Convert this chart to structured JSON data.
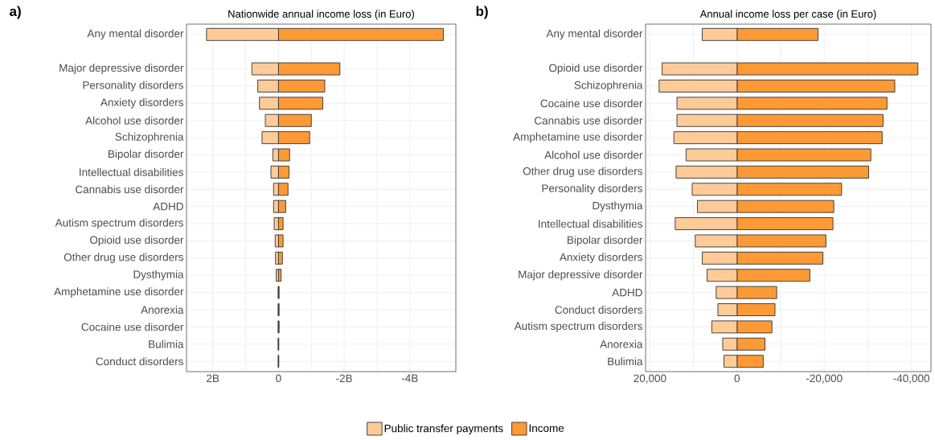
{
  "chart_data": [
    {
      "type": "bar",
      "orientation": "horizontal",
      "title": "Nationwide annual income loss (in Euro)",
      "annotations": [
        "a)"
      ],
      "categories": [
        "Any mental disorder",
        null,
        "Major depressive disorder",
        "Personality disorders",
        "Anxiety disorders",
        "Alcohol use disorder",
        "Schizophrenia",
        "Bipolar disorder",
        "Intellectual disabilities",
        "Cannabis use disorder",
        "ADHD",
        "Autism spectrum disorders",
        "Opioid use disorder",
        "Other drug use disorders",
        "Dysthymia",
        "Amphetamine use disorder",
        "Anorexia",
        "Cocaine use disorder",
        "Bulimia",
        "Conduct disorders"
      ],
      "series": [
        {
          "color": "#fdcb98",
          "values": [
            2.19,
            null,
            0.81,
            0.63,
            0.58,
            0.4,
            0.5,
            0.17,
            0.23,
            0.15,
            0.15,
            0.13,
            0.1,
            0.09,
            0.07,
            0.01,
            0.01,
            0.01,
            0.01,
            0.01
          ]
        },
        {
          "color": "#fd9a35",
          "values": [
            -5.02,
            null,
            -1.87,
            -1.41,
            -1.35,
            -1.0,
            -0.95,
            -0.34,
            -0.32,
            -0.29,
            -0.22,
            -0.14,
            -0.14,
            -0.12,
            -0.08,
            -0.02,
            -0.02,
            -0.02,
            -0.01,
            -0.01
          ]
        }
      ],
      "xlim": [
        2.8,
        -5.4
      ],
      "xticks": [
        {
          "value": 2,
          "label": "2B"
        },
        0,
        {
          "value": -2,
          "label": "-2B"
        },
        {
          "value": -4,
          "label": "-4B"
        }
      ],
      "grid": true,
      "stacked": true
    },
    {
      "type": "bar",
      "orientation": "horizontal",
      "title": "Annual income loss per case (in Euro)",
      "annotations": [
        "b)"
      ],
      "categories": [
        "Any mental disorder",
        null,
        "Opioid use disorder",
        "Schizophrenia",
        "Cocaine use disorder",
        "Cannabis use disorder",
        "Amphetamine use disorder",
        "Alcohol use disorder",
        "Other drug use disorders",
        "Personality disorders",
        "Dysthymia",
        "Intellectual disabilities",
        "Bipolar disorder",
        "Anxiety disorders",
        "Major depressive disorder",
        "ADHD",
        "Conduct disorders",
        "Autism spectrum disorders",
        "Anorexia",
        "Bulimia"
      ],
      "series": [
        {
          "name": "Public transfer payments",
          "color": "#fdcb98",
          "values": [
            8000,
            null,
            17200,
            17900,
            13800,
            13800,
            14500,
            11700,
            14000,
            10300,
            9100,
            14200,
            9600,
            8000,
            6900,
            4800,
            4400,
            5800,
            3300,
            3000
          ]
        },
        {
          "name": "Income",
          "color": "#fd9a35",
          "values": [
            -18600,
            null,
            -41500,
            -36200,
            -34400,
            -33500,
            -33300,
            -30700,
            -30200,
            -24000,
            -22200,
            -22000,
            -20400,
            -19700,
            -16700,
            -9100,
            -8700,
            -8000,
            -6400,
            -6000
          ]
        }
      ],
      "xlim": [
        21000,
        -44500
      ],
      "xticks": [
        {
          "value": 20000,
          "label": "20,000"
        },
        0,
        {
          "value": -20000,
          "label": "-20,000"
        },
        {
          "value": -40000,
          "label": "-40,000"
        }
      ],
      "grid": true,
      "legend": "bottom",
      "stacked": true
    }
  ]
}
